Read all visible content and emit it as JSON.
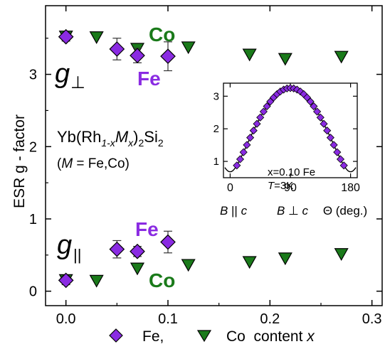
{
  "chart_data": [
    {
      "type": "scatter",
      "ylabel": "ESR g - factor",
      "xlim": [
        -0.02,
        0.31
      ],
      "ylim": [
        -0.2,
        3.95
      ],
      "x_ticks": [
        {
          "value": 0.0,
          "label": "0.0"
        },
        {
          "value": 0.1,
          "label": "0.1"
        },
        {
          "value": 0.2,
          "label": "0.2"
        },
        {
          "value": 0.3,
          "label": "0.3"
        }
      ],
      "y_ticks": [
        {
          "value": 0,
          "label": "0"
        },
        {
          "value": 1,
          "label": "1"
        },
        {
          "value": 2,
          "label": "2"
        },
        {
          "value": 3,
          "label": "3"
        }
      ],
      "grid": false,
      "series": [
        {
          "name": "Fe,",
          "marker": "diamond",
          "color": "#8a2be2",
          "points": [
            {
              "x": 0.0,
              "y": 3.52,
              "err": 0.06
            },
            {
              "x": 0.05,
              "y": 3.35,
              "err": 0.15
            },
            {
              "x": 0.07,
              "y": 3.26,
              "err": 0.1
            },
            {
              "x": 0.1,
              "y": 3.25,
              "err": 0.2
            },
            {
              "x": 0.0,
              "y": 0.15,
              "err": 0.06
            },
            {
              "x": 0.05,
              "y": 0.58,
              "err": 0.12
            },
            {
              "x": 0.07,
              "y": 0.55,
              "err": 0.07
            },
            {
              "x": 0.1,
              "y": 0.68,
              "err": 0.15
            }
          ]
        },
        {
          "name": "Co",
          "marker": "triangle-down",
          "color": "#1a7a1a",
          "points": [
            {
              "x": 0.0,
              "y": 3.53
            },
            {
              "x": 0.03,
              "y": 3.52
            },
            {
              "x": 0.07,
              "y": 3.36
            },
            {
              "x": 0.12,
              "y": 3.38
            },
            {
              "x": 0.18,
              "y": 3.28
            },
            {
              "x": 0.215,
              "y": 3.22
            },
            {
              "x": 0.27,
              "y": 3.25
            },
            {
              "x": 0.0,
              "y": 0.16
            },
            {
              "x": 0.03,
              "y": 0.15
            },
            {
              "x": 0.07,
              "y": 0.32
            },
            {
              "x": 0.12,
              "y": 0.37
            },
            {
              "x": 0.18,
              "y": 0.41
            },
            {
              "x": 0.215,
              "y": 0.46
            },
            {
              "x": 0.27,
              "y": 0.52
            }
          ]
        }
      ],
      "annotations": {
        "g_perp": "g",
        "g_perp_sub": "⊥",
        "g_par": "g",
        "g_par_sub": "||",
        "co_top": "Co",
        "fe_top": "Fe",
        "fe_bottom": "Fe",
        "co_bottom": "Co",
        "formula_1": "Yb(Rh",
        "formula_sub1": "1-x",
        "formula_M": "M",
        "formula_sub2": "x",
        "formula_2": ")",
        "formula_sub3": "2",
        "formula_3": "Si",
        "formula_sub4": "2",
        "formula_line2_open": "(",
        "formula_line2_M": "M",
        "formula_line2_rest": " = Fe,Co)"
      },
      "legend": {
        "placement": "bottom",
        "fe_label": "Fe,",
        "co_label": "Co  content ",
        "x_var": "x"
      },
      "colors": {
        "fe": "#8a2be2",
        "co": "#1a7a1a",
        "axis": "#000000"
      }
    },
    {
      "type": "line",
      "inset": true,
      "xlim": [
        -10,
        190
      ],
      "ylim": [
        0.5,
        3.4
      ],
      "x_ticks": [
        {
          "value": 0,
          "label": "0"
        },
        {
          "value": 90,
          "label": "90"
        },
        {
          "value": 180,
          "label": "180"
        }
      ],
      "y_ticks": [
        {
          "value": 1,
          "label": "1"
        },
        {
          "value": 2,
          "label": "2"
        },
        {
          "value": 3,
          "label": "3"
        }
      ],
      "g_par": 0.68,
      "g_perp": 3.25,
      "points_theta": [
        10,
        15,
        20,
        25,
        30,
        35,
        40,
        45,
        50,
        55,
        60,
        65,
        70,
        75,
        80,
        85,
        90,
        95,
        100,
        105,
        110,
        115,
        120,
        125,
        130,
        135,
        140,
        145,
        150,
        155,
        160,
        165,
        170
      ],
      "annotation_1": "x=0.10 Fe",
      "annotation_2_var": "T",
      "annotation_2_rest": "=3K",
      "label_bpar_B": "B",
      "label_bpar_sym": " || ",
      "label_bpar_c": "c",
      "label_bperp_B": "B",
      "label_bperp_sym": " ⊥ ",
      "label_bperp_c": "c",
      "label_theta": "Θ (deg.)"
    }
  ]
}
